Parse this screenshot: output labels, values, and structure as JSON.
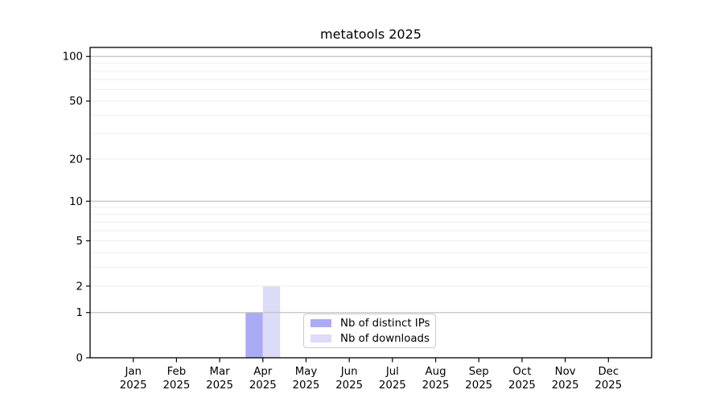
{
  "chart_data": {
    "type": "bar",
    "title": "metatools 2025",
    "x_ticks": {
      "months": [
        "Jan",
        "Feb",
        "Mar",
        "Apr",
        "May",
        "Jun",
        "Jul",
        "Aug",
        "Sep",
        "Oct",
        "Nov",
        "Dec"
      ],
      "year": "2025"
    },
    "series": [
      {
        "name": "Nb of distinct IPs",
        "color": "#aaaaf5",
        "values": [
          0,
          0,
          0,
          1,
          0,
          0,
          0,
          0,
          0,
          0,
          0,
          0
        ]
      },
      {
        "name": "Nb of downloads",
        "color": "#dcdcf8",
        "values": [
          0,
          0,
          0,
          2,
          0,
          0,
          0,
          0,
          0,
          0,
          0,
          0
        ]
      }
    ],
    "xlabel": "",
    "ylabel": "",
    "yscale": "log1p",
    "ylim": [
      0,
      115
    ],
    "yticks": [
      0,
      1,
      2,
      5,
      10,
      20,
      50,
      100
    ],
    "major_gridlines": [
      1,
      10,
      100
    ],
    "minor_gridlines": [
      2,
      3,
      4,
      5,
      6,
      7,
      8,
      9,
      20,
      30,
      40,
      50,
      60,
      70,
      80,
      90
    ],
    "grid": true,
    "legend": {
      "position": "lower center"
    }
  },
  "colors": {
    "background": "#ffffff",
    "axis": "#000000",
    "major_grid": "#c2c2c2",
    "minor_grid": "#eeeeee",
    "tick_text": "#000000",
    "legend_border": "#cbcbcb",
    "bar_distinct_ips": "#aaaaf5",
    "bar_downloads": "#dcdcf8"
  }
}
